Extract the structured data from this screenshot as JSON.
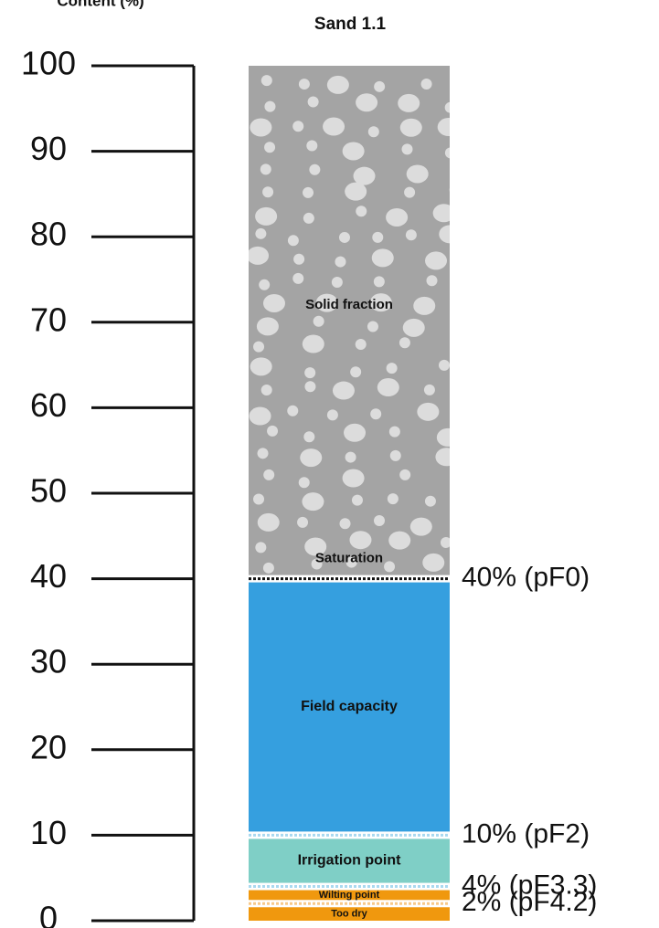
{
  "chart_data": {
    "type": "stacked_column",
    "axis_title": "Content (%)",
    "title": "Sand 1.1",
    "ylim": [
      0,
      100
    ],
    "yticks": [
      0,
      10,
      20,
      30,
      40,
      50,
      60,
      70,
      80,
      90,
      100
    ],
    "segments": [
      {
        "name": "Too dry",
        "color": "#f0980e",
        "value": 2
      },
      {
        "name": "Wilting point",
        "color": "#f0980e",
        "value": 2
      },
      {
        "name": "Irrigation point",
        "color": "#7fcfc6",
        "value": 6
      },
      {
        "name": "Field capacity",
        "color": "#359fdf",
        "value": 30
      },
      {
        "name": "Solid fraction",
        "color": "#a4a4a4",
        "value": 60
      }
    ],
    "annotation": "Saturation",
    "thresholds": [
      {
        "value": 40,
        "label": "40% (pF0)",
        "color": "#111111"
      },
      {
        "value": 10,
        "label": "10% (pF2)",
        "color": "#a9d9f0"
      },
      {
        "value": 4,
        "label": "4% (pF3.3)",
        "color": "#a9d9f0"
      },
      {
        "value": 2,
        "label": "2% (pF4.2)",
        "color": "#f7c98a"
      }
    ]
  }
}
